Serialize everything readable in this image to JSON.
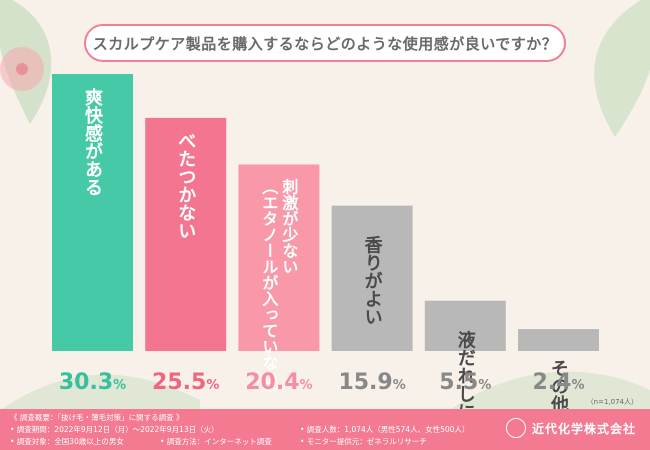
{
  "title": "スカルプケア製品を購入するならどのような使用感が良いですか？",
  "chart_data": {
    "type": "bar",
    "categories": [
      "爽快感がある",
      "べたつかない",
      "刺激が少ない（エタノールが入っていない）",
      "香りがよい",
      "液だれしにくい",
      "その他"
    ],
    "bar_labels": [
      [
        "爽快感がある"
      ],
      [
        "べたつかない"
      ],
      [
        "刺激が少ない",
        "（エタノールが入っていない）"
      ],
      [
        "香りがよい"
      ],
      [
        "液だれしにくい"
      ],
      [
        "その他"
      ]
    ],
    "values": [
      30.3,
      25.5,
      20.4,
      15.9,
      5.5,
      2.4
    ],
    "value_labels": [
      "30.3%",
      "25.5%",
      "20.4%",
      "15.9%",
      "5.5%",
      "2.4%"
    ],
    "ylim": [
      0,
      30.3
    ],
    "bar_colors": [
      "#45c9a6",
      "#f47590",
      "#f898a8",
      "#b8b8b8",
      "#b8b8b8",
      "#b8b8b8"
    ],
    "value_label_colors": [
      "#38bf9c",
      "#f0667f",
      "#f58ea0",
      "#888888",
      "#888888",
      "#888888"
    ],
    "grid": false
  },
  "note": "（n=1,074人）",
  "footer": {
    "heading": "《 調査概要：「抜け毛・薄毛対策」に関する調査 》",
    "period": "• 調査期間：2022年9月12日（月）〜2022年9月13日（火）",
    "target": "• 調査対象：全国30歳以上の男女",
    "method": "• 調査方法：インターネット調査",
    "count": "• 調査人数：1,074人（男性574人、女性500人）",
    "provider": "• モニター提供元：ゼネラルリサーチ",
    "brand": "近代化学株式会社"
  }
}
